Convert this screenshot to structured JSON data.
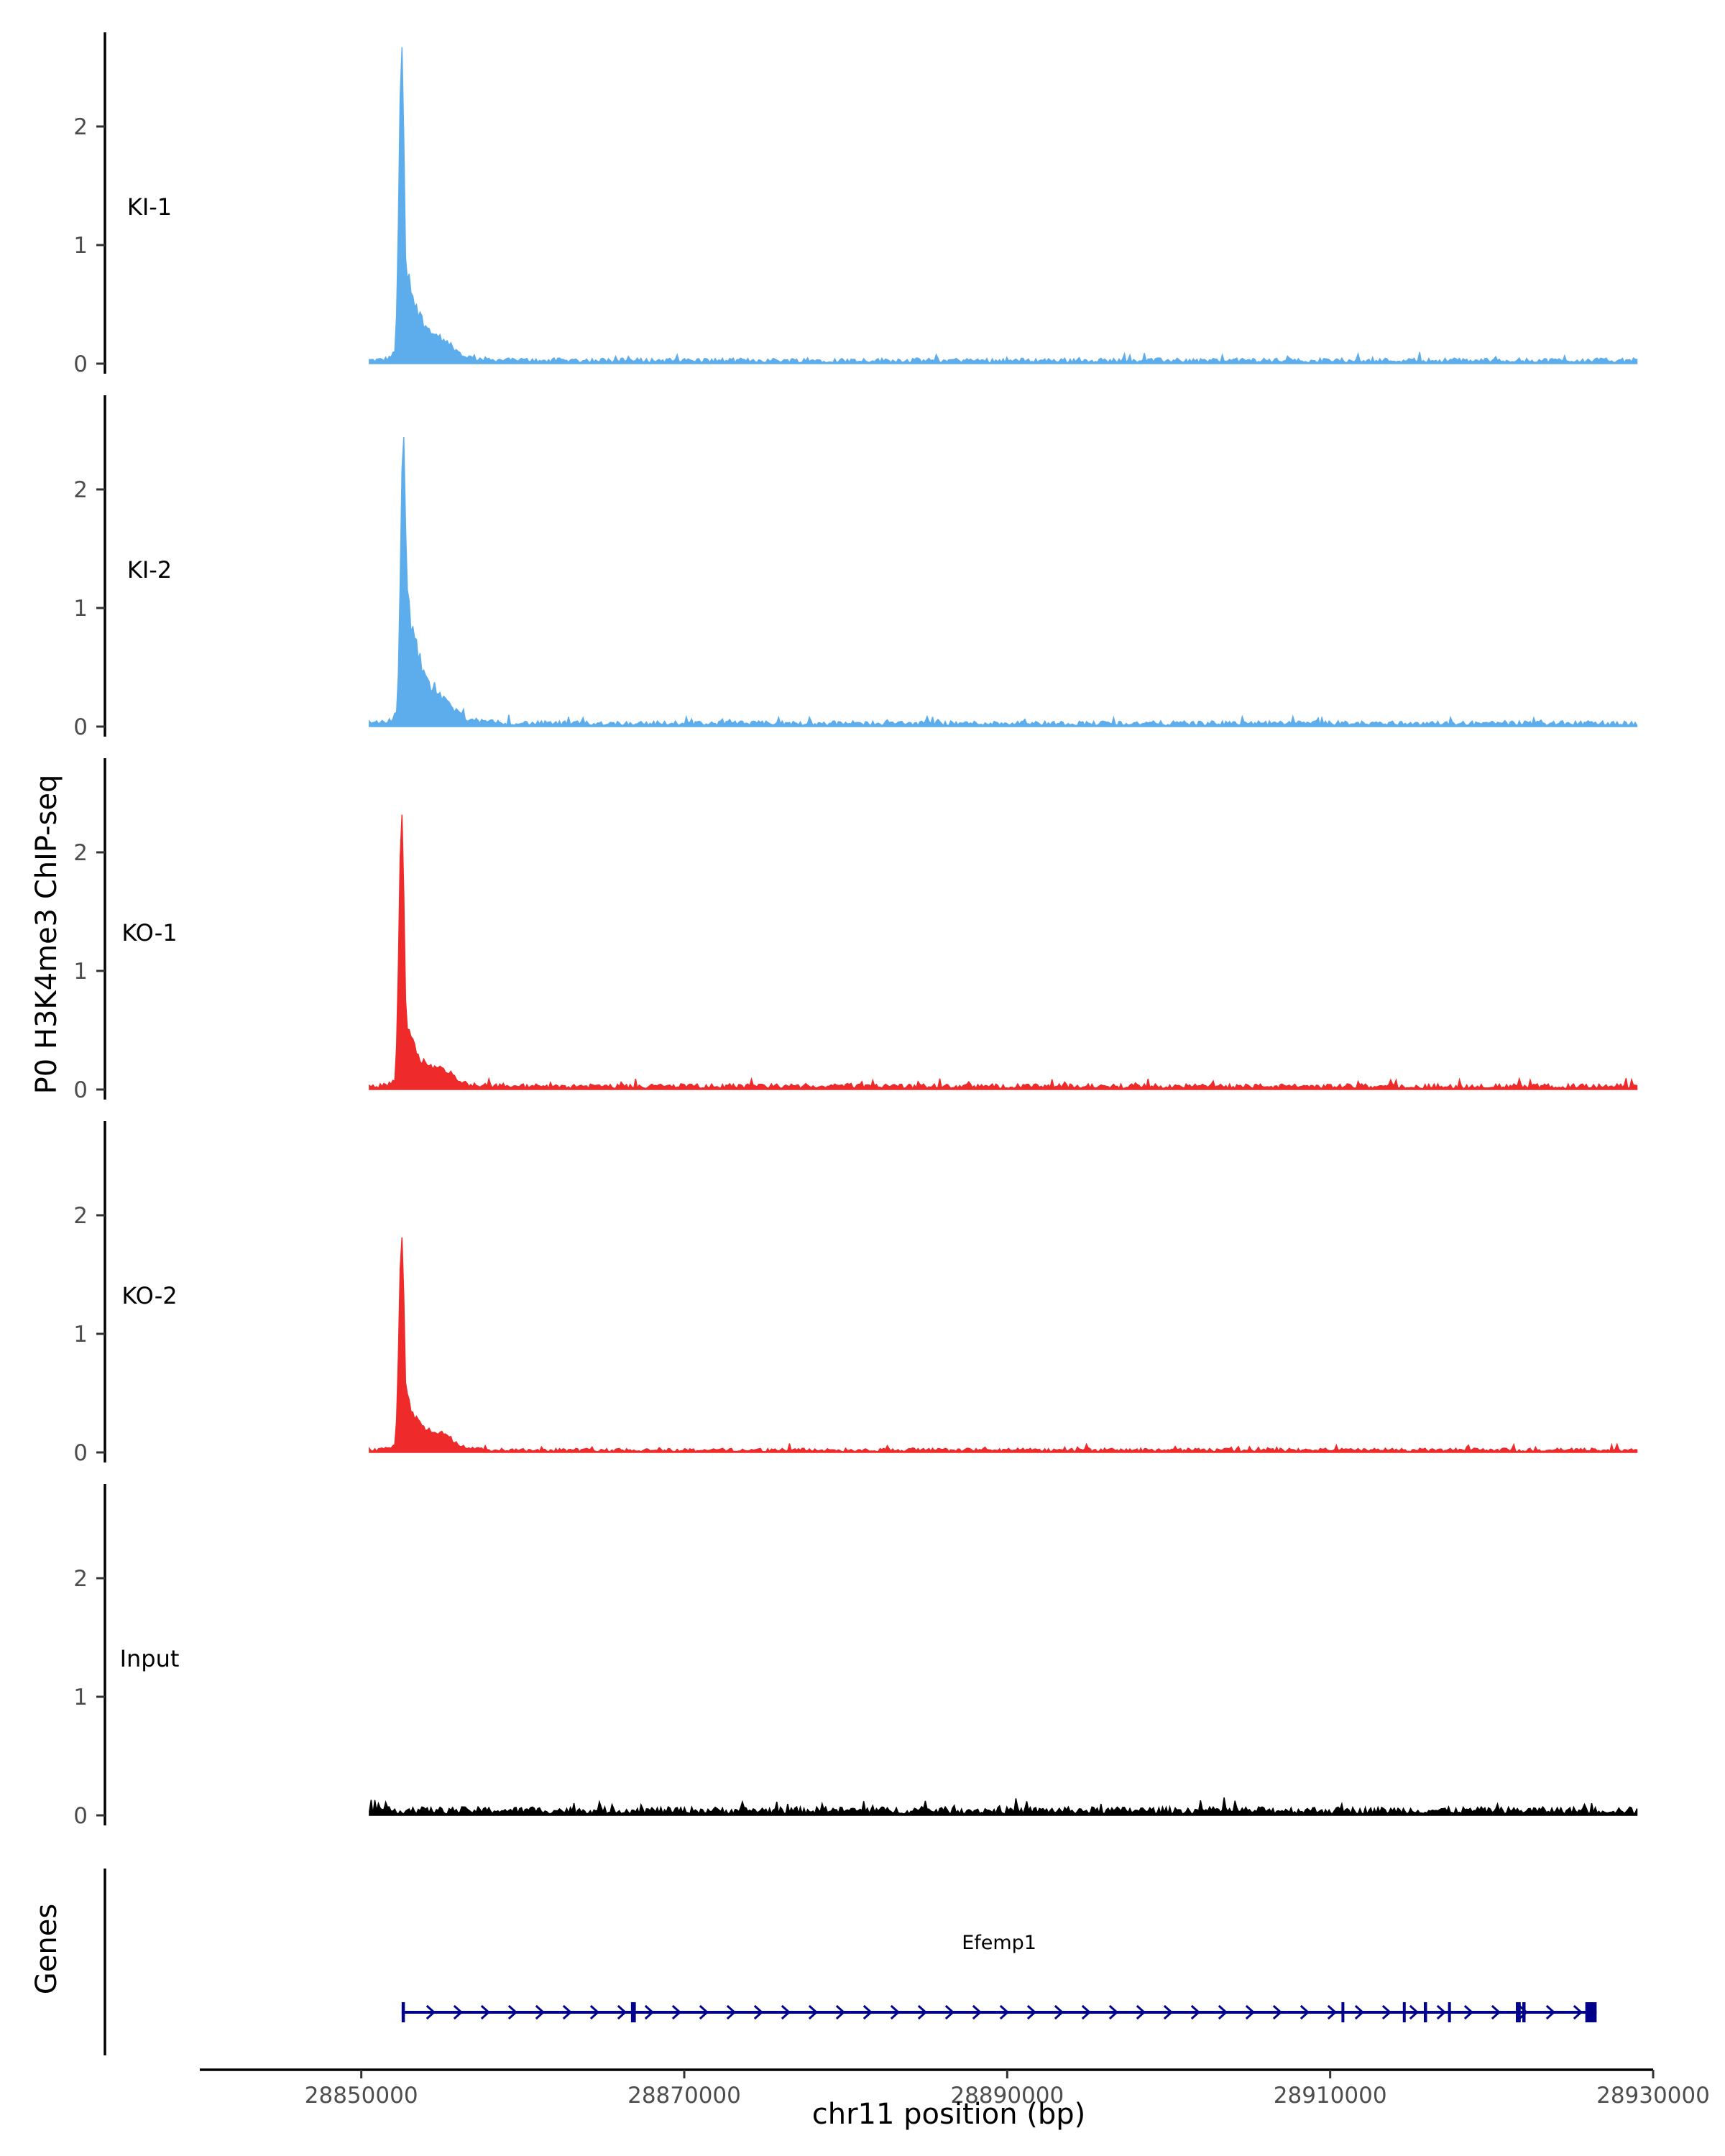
{
  "chart_data": {
    "type": "area",
    "title": "",
    "ylabel": "P0 H3K4me3 ChIP-seq",
    "xlabel": "chr11 position (bp)",
    "xlim": [
      28840000,
      28930000
    ],
    "ylim": [
      0,
      2.75
    ],
    "yticks": [
      0,
      1,
      2
    ],
    "xticks": [
      28850000,
      28870000,
      28890000,
      28910000,
      28930000
    ],
    "ytick_labels": [
      "0",
      "1",
      "2"
    ],
    "xtick_labels": [
      "28850000",
      "28870000",
      "28890000",
      "28910000",
      "28930000"
    ],
    "track_start": 28850500,
    "track_end": 28929000,
    "colors": {
      "KI": "#5DADEC",
      "KO": "#EE2A2A",
      "Input": "#000000",
      "gene": "#00008B"
    },
    "tracks": [
      {
        "label": "KI-1",
        "color": "#5DADEC",
        "peak_position": 28852500,
        "peak_height": 2.64,
        "shoulder": 1.05,
        "background": 0.04
      },
      {
        "label": "KI-2",
        "color": "#5DADEC",
        "peak_position": 28852600,
        "peak_height": 2.45,
        "shoulder": 1.3,
        "background": 0.04
      },
      {
        "label": "KO-1",
        "color": "#EE2A2A",
        "peak_position": 28852500,
        "peak_height": 2.3,
        "shoulder": 0.7,
        "background": 0.04
      },
      {
        "label": "KO-2",
        "color": "#EE2A2A",
        "peak_position": 28852500,
        "peak_height": 1.8,
        "shoulder": 0.6,
        "background": 0.03
      },
      {
        "label": "Input",
        "color": "#000000",
        "peak_position": null,
        "peak_height": 0.0,
        "shoulder": 0.0,
        "background": 0.06
      }
    ],
    "genes_panel_label": "Genes",
    "gene": {
      "name": "Efemp1",
      "strand": "+",
      "start": 28852500,
      "end": 28926500,
      "exons": [
        {
          "start": 28852500,
          "end": 28852700
        },
        {
          "start": 28866700,
          "end": 28867000
        },
        {
          "start": 28910700,
          "end": 28910800
        },
        {
          "start": 28914500,
          "end": 28914600
        },
        {
          "start": 28915800,
          "end": 28916000
        },
        {
          "start": 28917300,
          "end": 28917400
        },
        {
          "start": 28921500,
          "end": 28921800
        },
        {
          "start": 28921900,
          "end": 28922100
        },
        {
          "start": 28925800,
          "end": 28926500
        }
      ]
    }
  }
}
